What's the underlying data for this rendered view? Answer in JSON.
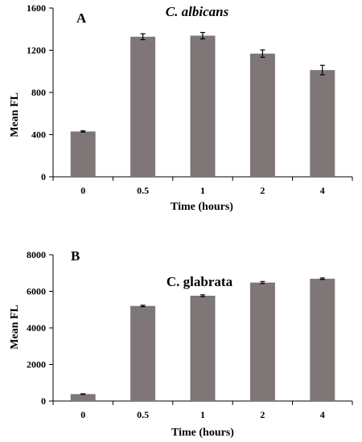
{
  "chart_data": [
    {
      "type": "bar",
      "panel_label": "A",
      "title": "C. albicans",
      "title_italic": true,
      "xlabel": "Time (hours)",
      "ylabel": "Mean FL",
      "categories": [
        "0",
        "0.5",
        "1",
        "2",
        "4"
      ],
      "values": [
        430,
        1328,
        1338,
        1168,
        1012
      ],
      "errors": [
        6,
        28,
        30,
        35,
        45
      ],
      "ylim": [
        0,
        1600
      ],
      "yticks": [
        "0",
        "400",
        "800",
        "1200",
        "1600"
      ],
      "bar_color": "#7f7777",
      "grid": false
    },
    {
      "type": "bar",
      "panel_label": "B",
      "title": "C. glabrata",
      "title_italic": false,
      "xlabel": "Time (hours)",
      "ylabel": "Mean FL",
      "categories": [
        "0",
        "0.5",
        "1",
        "2",
        "4"
      ],
      "values": [
        380,
        5200,
        5760,
        6480,
        6690
      ],
      "errors": [
        15,
        40,
        50,
        55,
        40
      ],
      "ylim": [
        0,
        8000
      ],
      "yticks": [
        "0",
        "2000",
        "4000",
        "6000",
        "8000"
      ],
      "bar_color": "#7f7777",
      "grid": false
    }
  ]
}
